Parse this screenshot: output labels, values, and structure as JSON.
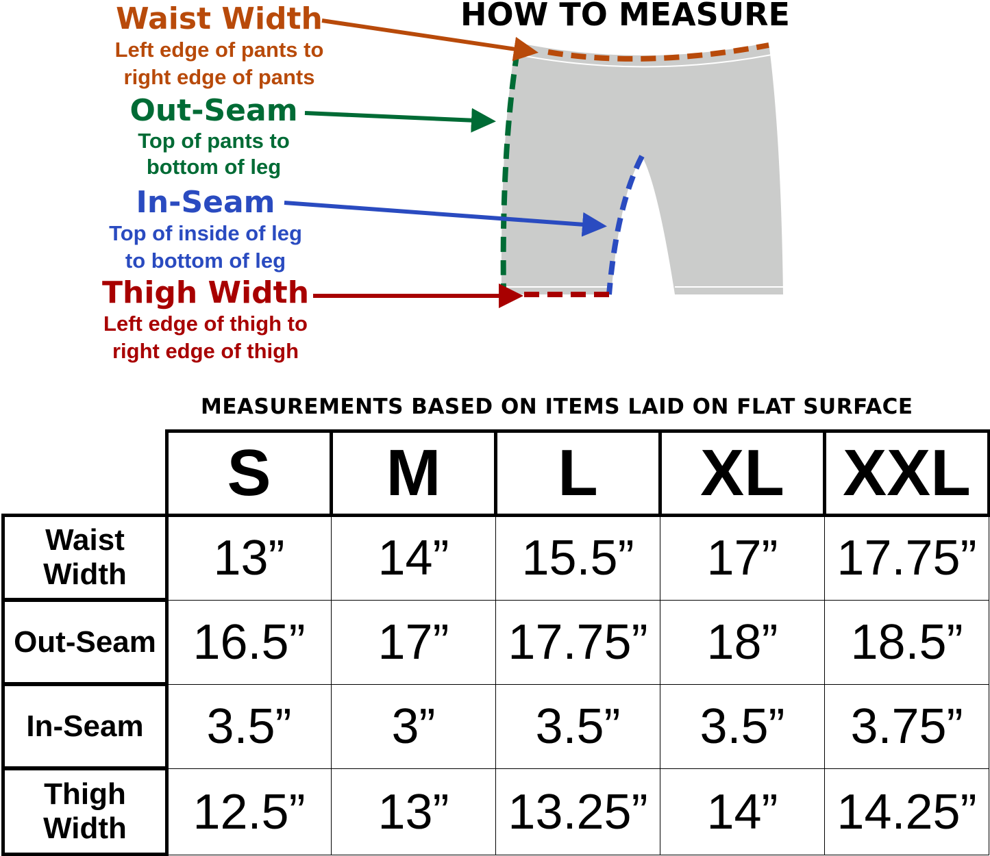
{
  "header": {
    "title": "HOW TO MEASURE"
  },
  "legend": [
    {
      "title": "Waist Width",
      "desc": [
        "Left edge of pants to",
        "right edge of pants"
      ],
      "color": "#b84a0a"
    },
    {
      "title": "Out-Seam",
      "desc": [
        "Top of pants to",
        "bottom of leg"
      ],
      "color": "#006b35"
    },
    {
      "title": "In-Seam",
      "desc": [
        "Top of inside of leg",
        "to bottom of leg"
      ],
      "color": "#2a4bc0"
    },
    {
      "title": "Thigh Width",
      "desc": [
        "Left edge of thigh to",
        "right edge of thigh"
      ],
      "color": "#a80000"
    }
  ],
  "diagram": {
    "garment_color": "#cbcccb"
  },
  "table": {
    "note": "MEASUREMENTS BASED ON ITEMS LAID ON FLAT SURFACE",
    "sizes": [
      "S",
      "M",
      "L",
      "XL",
      "XXL"
    ],
    "rows": [
      {
        "label": "Waist Width",
        "values": [
          "13”",
          "14”",
          "15.5”",
          "17”",
          "17.75”"
        ]
      },
      {
        "label": "Out-Seam",
        "values": [
          "16.5”",
          "17”",
          "17.75”",
          "18”",
          "18.5”"
        ]
      },
      {
        "label": "In-Seam",
        "values": [
          "3.5”",
          "3”",
          "3.5”",
          "3.5”",
          "3.75”"
        ]
      },
      {
        "label": "Thigh Width",
        "values": [
          "12.5”",
          "13”",
          "13.25”",
          "14”",
          "14.25”"
        ]
      }
    ]
  }
}
